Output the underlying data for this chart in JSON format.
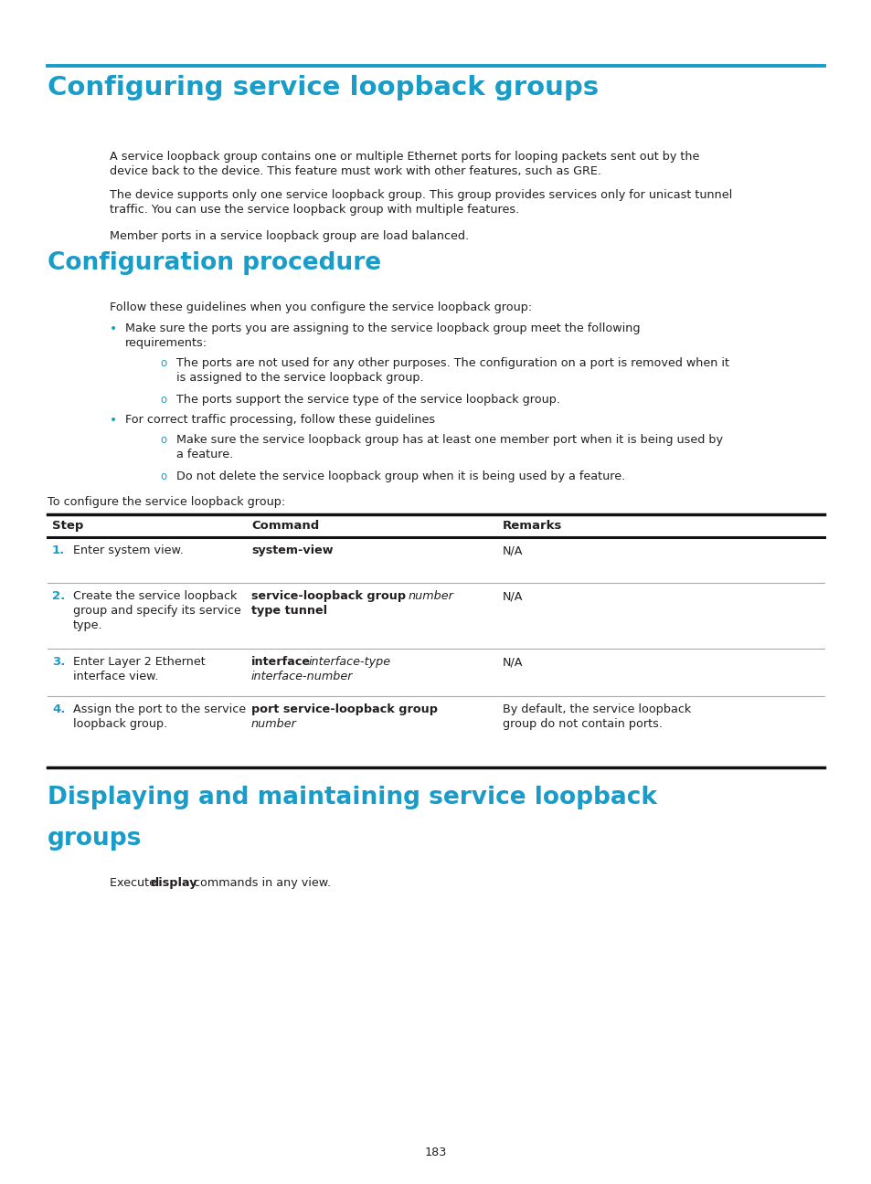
{
  "page_bg": "#ffffff",
  "header_line_color": "#1a9cc9",
  "heading1_color": "#1a9cc9",
  "heading2_color": "#1a9cc9",
  "text_color": "#231f20",
  "bullet_color": "#1a9cc9",
  "step_color": "#1a9cc9",
  "page_number": "183",
  "title1": "Configuring service loopback groups",
  "title2": "Configuration procedure",
  "title3_line1": "Displaying and maintaining service loopback",
  "title3_line2": "groups",
  "para1_line1": "A service loopback group contains one or multiple Ethernet ports for looping packets sent out by the",
  "para1_line2": "device back to the device. This feature must work with other features, such as GRE.",
  "para2_line1": "The device supports only one service loopback group. This group provides services only for unicast tunnel",
  "para2_line2": "traffic. You can use the service loopback group with multiple features.",
  "para3": "Member ports in a service loopback group are load balanced.",
  "intro_text": "Follow these guidelines when you configure the service loopback group:",
  "bullet1_line1": "Make sure the ports you are assigning to the service loopback group meet the following",
  "bullet1_line2": "requirements:",
  "sub1a_line1": "The ports are not used for any other purposes. The configuration on a port is removed when it",
  "sub1a_line2": "is assigned to the service loopback group.",
  "sub1b": "The ports support the service type of the service loopback group.",
  "bullet2": "For correct traffic processing, follow these guidelines",
  "sub2a_line1": "Make sure the service loopback group has at least one member port when it is being used by",
  "sub2a_line2": "a feature.",
  "sub2b": "Do not delete the service loopback group when it is being used by a feature.",
  "table_intro": "To configure the service loopback group:",
  "table_headers": [
    "Step",
    "Command",
    "Remarks"
  ],
  "page_num_text": "183"
}
